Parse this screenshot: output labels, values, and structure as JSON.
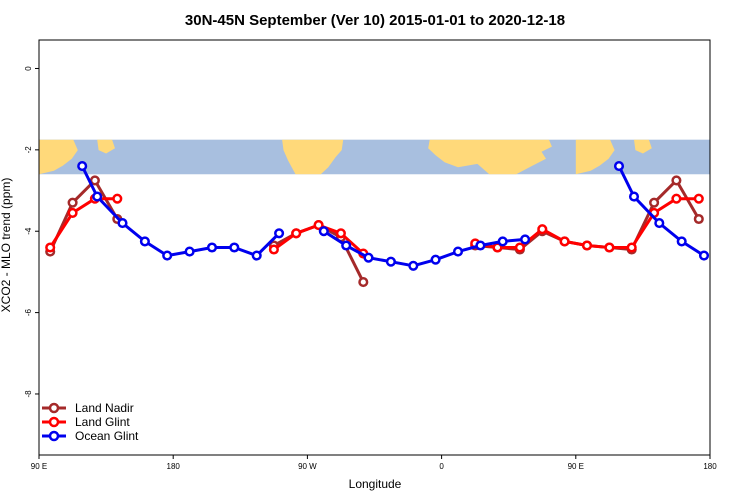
{
  "chart_data": {
    "type": "line",
    "title": "30N-45N September (Ver 10)   2015-01-01 to 2020-12-18",
    "xlabel": "Longitude",
    "ylabel": "XCO2 - MLO trend (ppm)",
    "xlim": [
      90,
      540
    ],
    "ylim": [
      -9.5,
      0.7
    ],
    "x_ticks": [
      {
        "value": 90,
        "label": "90 E"
      },
      {
        "value": 180,
        "label": "180"
      },
      {
        "value": 270,
        "label": "90 W"
      },
      {
        "value": 360,
        "label": "0"
      },
      {
        "value": 450,
        "label": "90 E"
      },
      {
        "value": 540,
        "label": "180"
      }
    ],
    "y_ticks": [
      {
        "value": 0,
        "label": "0"
      },
      {
        "value": -2,
        "label": "-2"
      },
      {
        "value": -4,
        "label": "-4"
      },
      {
        "value": -6,
        "label": "-6"
      },
      {
        "value": -8,
        "label": "-8"
      }
    ],
    "map_strip": {
      "y_top": -1.75,
      "y_bottom": -2.6,
      "land_color": "#ffd97a",
      "ocean_color": "#a8bfdf"
    },
    "legend_position": "bottom-left",
    "series": [
      {
        "name": "Land Nadir",
        "color": "#a52a2a",
        "segments": [
          [
            [
              97.5,
              -4.5
            ],
            [
              112.5,
              -3.3
            ],
            [
              127.5,
              -2.75
            ],
            [
              142.5,
              -3.7
            ]
          ],
          [
            [
              247.5,
              -4.35
            ],
            [
              262.5,
              -4.05
            ],
            [
              277.5,
              -3.85
            ],
            [
              292.5,
              -4.15
            ],
            [
              307.5,
              -5.25
            ]
          ],
          [
            [
              382.5,
              -4.35
            ],
            [
              397.5,
              -4.4
            ],
            [
              412.5,
              -4.45
            ],
            [
              427.5,
              -4.0
            ],
            [
              442.5,
              -4.25
            ],
            [
              457.5,
              -4.35
            ],
            [
              472.5,
              -4.4
            ],
            [
              487.5,
              -4.45
            ],
            [
              502.5,
              -3.3
            ],
            [
              517.5,
              -2.75
            ],
            [
              532.5,
              -3.7
            ]
          ]
        ]
      },
      {
        "name": "Land Glint",
        "color": "#ff0000",
        "segments": [
          [
            [
              97.5,
              -4.4
            ],
            [
              112.5,
              -3.55
            ],
            [
              127.5,
              -3.2
            ],
            [
              142.5,
              -3.2
            ]
          ],
          [
            [
              247.5,
              -4.45
            ],
            [
              262.5,
              -4.05
            ],
            [
              277.5,
              -3.85
            ],
            [
              292.5,
              -4.05
            ],
            [
              307.5,
              -4.55
            ]
          ],
          [
            [
              382.5,
              -4.3
            ],
            [
              397.5,
              -4.4
            ],
            [
              412.5,
              -4.4
            ],
            [
              427.5,
              -3.95
            ],
            [
              442.5,
              -4.25
            ],
            [
              457.5,
              -4.35
            ],
            [
              472.5,
              -4.4
            ],
            [
              487.5,
              -4.4
            ],
            [
              502.5,
              -3.55
            ],
            [
              517.5,
              -3.2
            ],
            [
              532.5,
              -3.2
            ]
          ]
        ]
      },
      {
        "name": "Ocean Glint",
        "color": "#0000ee",
        "segments": [
          [
            [
              119,
              -2.4
            ],
            [
              129,
              -3.15
            ],
            [
              146,
              -3.8
            ],
            [
              161,
              -4.25
            ],
            [
              176,
              -4.6
            ],
            [
              191,
              -4.5
            ],
            [
              206,
              -4.4
            ],
            [
              221,
              -4.4
            ],
            [
              236,
              -4.6
            ],
            [
              251,
              -4.05
            ]
          ],
          [
            [
              281,
              -4.0
            ],
            [
              296,
              -4.35
            ],
            [
              311,
              -4.65
            ],
            [
              326,
              -4.75
            ],
            [
              341,
              -4.85
            ],
            [
              356,
              -4.7
            ],
            [
              371,
              -4.5
            ],
            [
              386,
              -4.35
            ],
            [
              401,
              -4.25
            ],
            [
              416,
              -4.2
            ]
          ],
          [
            [
              479,
              -2.4
            ],
            [
              489,
              -3.15
            ],
            [
              506,
              -3.8
            ],
            [
              521,
              -4.25
            ],
            [
              536,
              -4.6
            ]
          ]
        ]
      }
    ]
  }
}
